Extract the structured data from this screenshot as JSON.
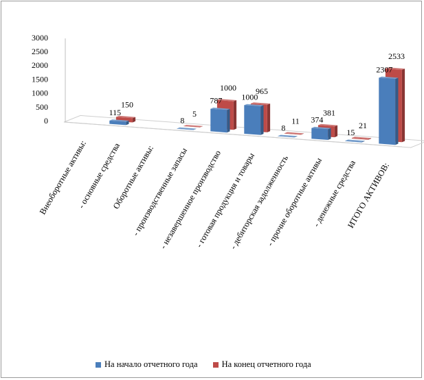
{
  "chart_data": {
    "type": "bar",
    "style": "3d-clustered",
    "title": "",
    "xlabel": "",
    "ylabel": "",
    "ylim": [
      0,
      3000
    ],
    "yticks": [
      0,
      500,
      1000,
      1500,
      2000,
      2500,
      3000
    ],
    "grid": false,
    "legend_position": "bottom",
    "categories": [
      "Внеоборотные активы:",
      "- основные средства",
      "Оборотные активы:",
      "- производственные запасы",
      "- незавершенное производство",
      "- готовая продукция и товары",
      "- дебиторская задолженность",
      "- прочие оборотные активы",
      "- денежные средства",
      "ИТОГО АКТИВОВ:"
    ],
    "series": [
      {
        "name": "На начало отчетного года",
        "color": "#4a7ebb",
        "values": [
          null,
          115,
          null,
          8,
          787,
          1000,
          8,
          374,
          15,
          2307
        ]
      },
      {
        "name": "На конец отчетного года",
        "color": "#be4b48",
        "values": [
          null,
          150,
          null,
          5,
          1000,
          965,
          11,
          381,
          21,
          2533
        ]
      }
    ]
  }
}
